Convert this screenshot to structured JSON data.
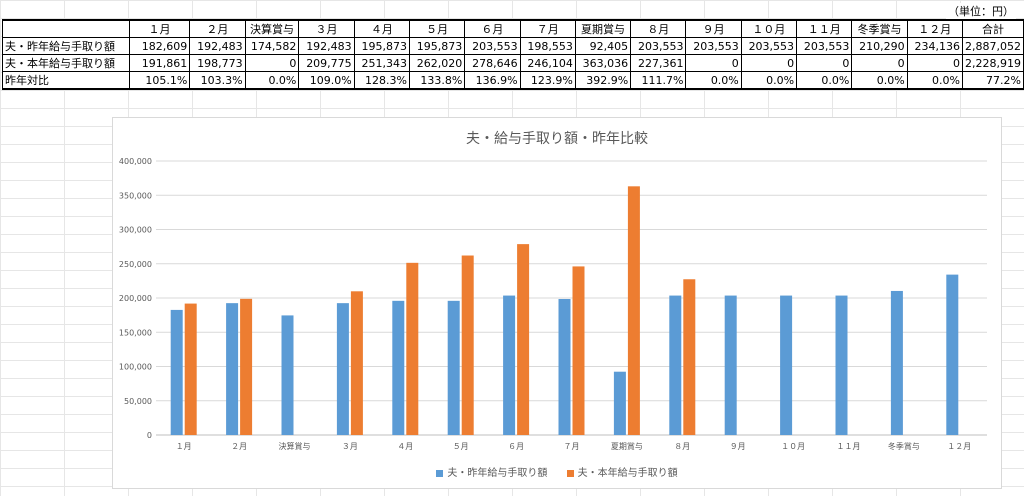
{
  "unit_note": "（単位：円）",
  "table": {
    "headers": [
      "",
      "１月",
      "２月",
      "決算賞与",
      "３月",
      "４月",
      "５月",
      "６月",
      "７月",
      "夏期賞与",
      "８月",
      "９月",
      "１０月",
      "１１月",
      "冬季賞与",
      "１２月",
      "合計"
    ],
    "rows": [
      {
        "label": "夫・昨年給与手取り額",
        "cells": [
          "182,609",
          "192,483",
          "174,582",
          "192,483",
          "195,873",
          "195,873",
          "203,553",
          "198,553",
          "92,405",
          "203,553",
          "203,553",
          "203,553",
          "203,553",
          "210,290",
          "234,136",
          "2,887,052"
        ]
      },
      {
        "label": "夫・本年給与手取り額",
        "cells": [
          "191,861",
          "198,773",
          "0",
          "209,775",
          "251,343",
          "262,020",
          "278,646",
          "246,104",
          "363,036",
          "227,361",
          "0",
          "0",
          "0",
          "0",
          "0",
          "2,228,919"
        ]
      },
      {
        "label": "昨年対比",
        "cells": [
          "105.1%",
          "103.3%",
          "0.0%",
          "109.0%",
          "128.3%",
          "133.8%",
          "136.9%",
          "123.9%",
          "392.9%",
          "111.7%",
          "0.0%",
          "0.0%",
          "0.0%",
          "0.0%",
          "0.0%",
          "77.2%"
        ]
      }
    ]
  },
  "chart_data": {
    "type": "bar",
    "title": "夫・給与手取り額・昨年比較",
    "categories": [
      "１月",
      "２月",
      "決算賞与",
      "３月",
      "４月",
      "５月",
      "６月",
      "７月",
      "夏期賞与",
      "８月",
      "９月",
      "１０月",
      "１１月",
      "冬季賞与",
      "１２月"
    ],
    "series": [
      {
        "name": "夫・昨年給与手取り額",
        "color": "#5b9bd5",
        "values": [
          182609,
          192483,
          174582,
          192483,
          195873,
          195873,
          203553,
          198553,
          92405,
          203553,
          203553,
          203553,
          203553,
          210290,
          234136
        ]
      },
      {
        "name": "夫・本年給与手取り額",
        "color": "#ed7d31",
        "values": [
          191861,
          198773,
          0,
          209775,
          251343,
          262020,
          278646,
          246104,
          363036,
          227361,
          0,
          0,
          0,
          0,
          0
        ]
      }
    ],
    "ylim": [
      0,
      400000
    ],
    "yticks": [
      "0",
      "50,000",
      "100,000",
      "150,000",
      "200,000",
      "250,000",
      "300,000",
      "350,000",
      "400,000"
    ],
    "grid": true,
    "legend": "bottom"
  }
}
